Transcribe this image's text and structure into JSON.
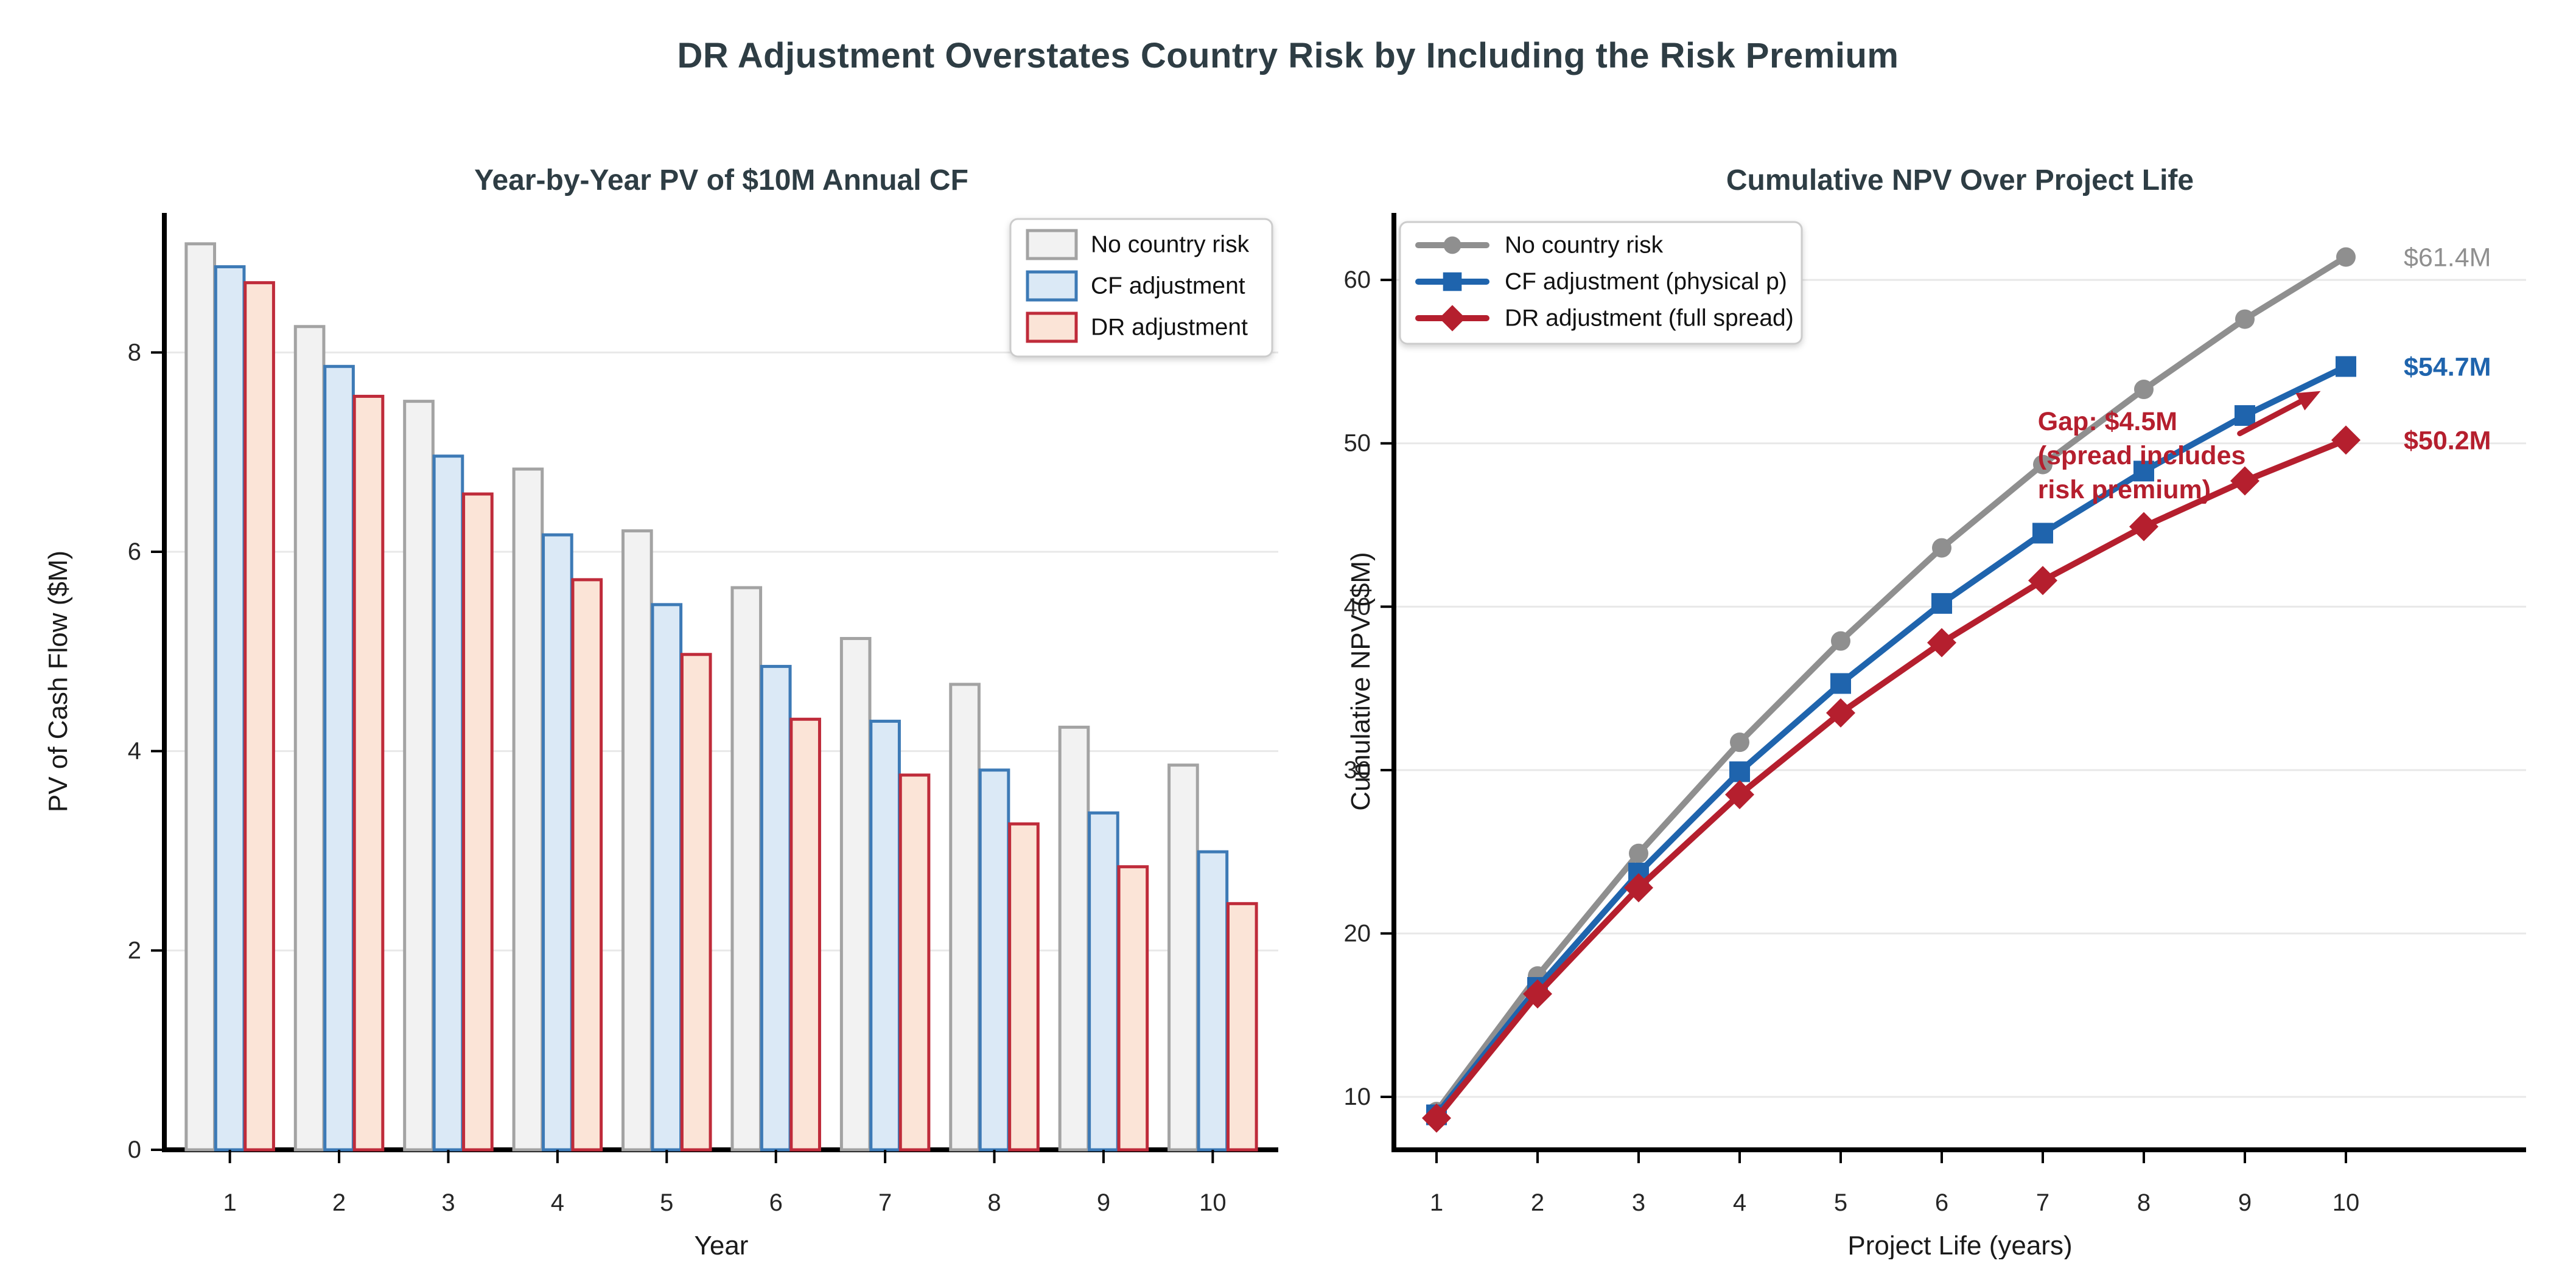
{
  "figure_title": "DR Adjustment Overstates Country Risk by Including the Risk Premium",
  "colors": {
    "heading": "#2e3d44",
    "axis_spine": "#000000",
    "tick_label": "#262626",
    "axis_label": "#1a1a1a",
    "grid": "#e8e8e8",
    "legend_border": "#cccccc",
    "legend_text": "#111111"
  },
  "chart_data": [
    {
      "type": "bar",
      "title": "Year-by-Year PV of $10M Annual CF",
      "xlabel": "Year",
      "ylabel": "PV of Cash Flow ($M)",
      "categories": [
        "1",
        "2",
        "3",
        "4",
        "5",
        "6",
        "7",
        "8",
        "9",
        "10"
      ],
      "yticks": [
        0,
        2,
        4,
        6,
        8
      ],
      "ylim": [
        0,
        9.4
      ],
      "grid": true,
      "legend_position": "upper-right",
      "series": [
        {
          "name": "No country risk",
          "fill": "#f2f2f2",
          "edge": "#a3a3a3",
          "values": [
            9.09,
            8.26,
            7.51,
            6.83,
            6.21,
            5.64,
            5.13,
            4.67,
            4.24,
            3.86
          ]
        },
        {
          "name": "CF adjustment",
          "fill": "#dbe9f6",
          "edge": "#3d7ab6",
          "values": [
            8.86,
            7.86,
            6.96,
            6.17,
            5.47,
            4.85,
            4.3,
            3.81,
            3.38,
            2.99
          ]
        },
        {
          "name": "DR adjustment",
          "fill": "#fbe4d7",
          "edge": "#bf2b3a",
          "values": [
            8.7,
            7.56,
            6.58,
            5.72,
            4.97,
            4.32,
            3.76,
            3.27,
            2.84,
            2.47
          ]
        }
      ]
    },
    {
      "type": "line",
      "title": "Cumulative NPV Over Project Life",
      "xlabel": "Project Life (years)",
      "ylabel": "Cumulative NPV ($M)",
      "x": [
        1,
        2,
        3,
        4,
        5,
        6,
        7,
        8,
        9,
        10
      ],
      "yticks": [
        10,
        20,
        30,
        40,
        50,
        60
      ],
      "ylim": [
        6.76,
        64.1
      ],
      "grid": true,
      "legend_position": "upper-left",
      "series": [
        {
          "name": "No country risk",
          "color": "#8f8f8f",
          "marker": "circle",
          "end_label": "$61.4M",
          "end_label_bold": false,
          "values": [
            9.1,
            17.4,
            24.9,
            31.7,
            37.9,
            43.6,
            48.7,
            53.3,
            57.6,
            61.4
          ]
        },
        {
          "name": "CF adjustment (physical p)",
          "color": "#1f64ad",
          "marker": "square",
          "end_label": "$54.7M",
          "end_label_bold": true,
          "values": [
            8.9,
            16.7,
            23.7,
            29.9,
            35.3,
            40.2,
            44.5,
            48.3,
            51.7,
            54.7
          ]
        },
        {
          "name": "DR adjustment (full spread)",
          "color": "#b51f2e",
          "marker": "diamond",
          "end_label": "$50.2M",
          "end_label_bold": true,
          "values": [
            8.7,
            16.3,
            22.8,
            28.5,
            33.5,
            37.8,
            41.6,
            44.9,
            47.7,
            50.2
          ]
        }
      ],
      "annotation": {
        "lines": [
          "Gap: $4.5M",
          "(spread includes",
          "risk premium)"
        ],
        "color": "#b51f2e",
        "x": 6.95,
        "y": 50.8,
        "arrow": {
          "x1": 8.95,
          "y1": 50.6,
          "x2": 9.75,
          "y2": 53.2
        }
      }
    }
  ]
}
